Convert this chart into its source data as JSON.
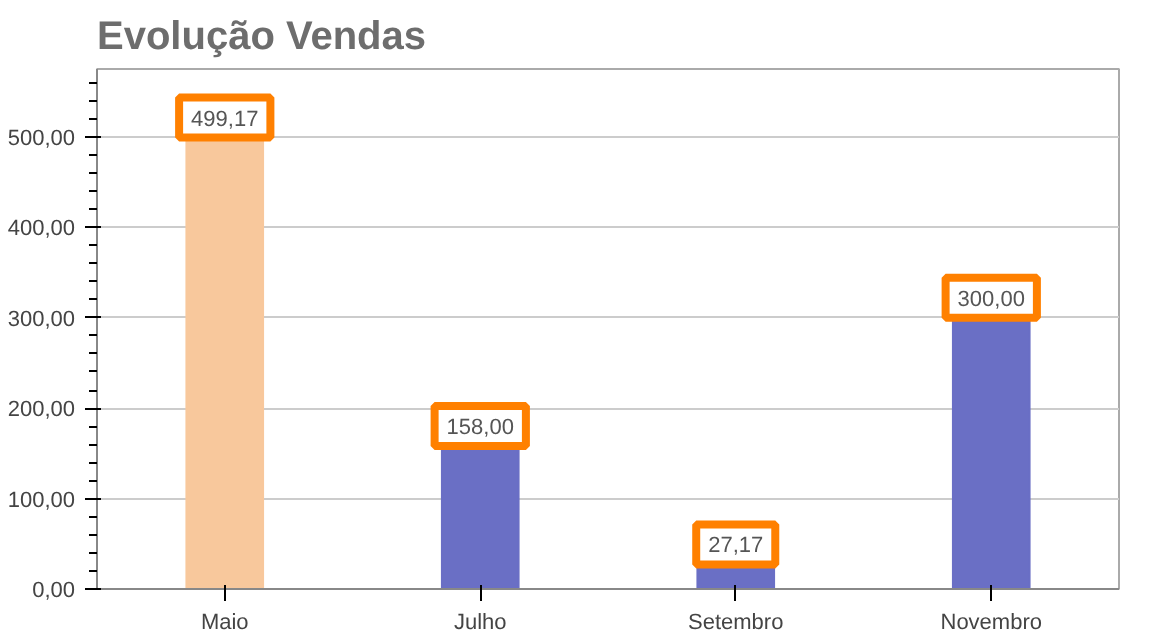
{
  "chart_data": {
    "type": "bar",
    "title": "Evolução Vendas",
    "categories": [
      "Maio",
      "Julho",
      "Setembro",
      "Novembro"
    ],
    "values": [
      499.17,
      158.0,
      27.17,
      300.0
    ],
    "colors": [
      "#f8c89c",
      "#6a6fc5",
      "#6a6fc5",
      "#6a6fc5"
    ],
    "value_labels": [
      "499,17",
      "158,00",
      "27,17",
      "300,00"
    ],
    "ylim": [
      0,
      575
    ],
    "yticks": [
      {
        "value": 0,
        "label": "0,00"
      },
      {
        "value": 100,
        "label": "100,00"
      },
      {
        "value": 200,
        "label": "200,00"
      },
      {
        "value": 300,
        "label": "300,00"
      },
      {
        "value": 400,
        "label": "400,00"
      },
      {
        "value": 500,
        "label": "500,00"
      }
    ],
    "grid": "y"
  }
}
